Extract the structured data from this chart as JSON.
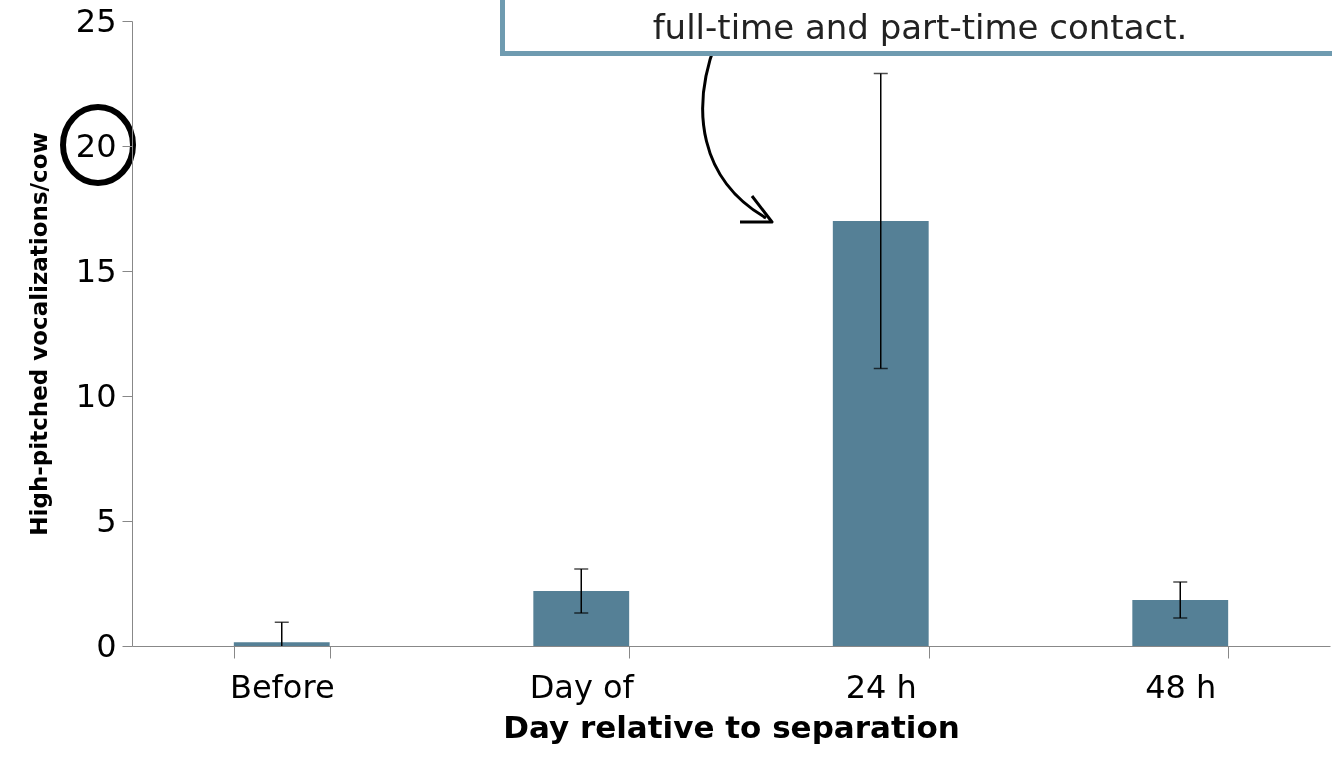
{
  "chart_data": {
    "type": "bar",
    "xlabel": "Day relative to separation",
    "ylabel": "High-pitched vocalizations/cow",
    "categories": [
      "Before",
      "Day of",
      "24 h",
      "48 h"
    ],
    "values": [
      0.15,
      2.2,
      17,
      1.84
    ],
    "errors": [
      [
        0,
        0.95
      ],
      [
        1.32,
        3.08
      ],
      [
        11.1,
        22.9
      ],
      [
        1.12,
        2.56
      ]
    ],
    "color": "#558096",
    "ylim": [
      0,
      25
    ],
    "yticks": [
      0,
      5,
      10,
      15,
      20,
      25
    ],
    "grid": false,
    "annotations": [
      "full-time and part-time contact."
    ]
  }
}
